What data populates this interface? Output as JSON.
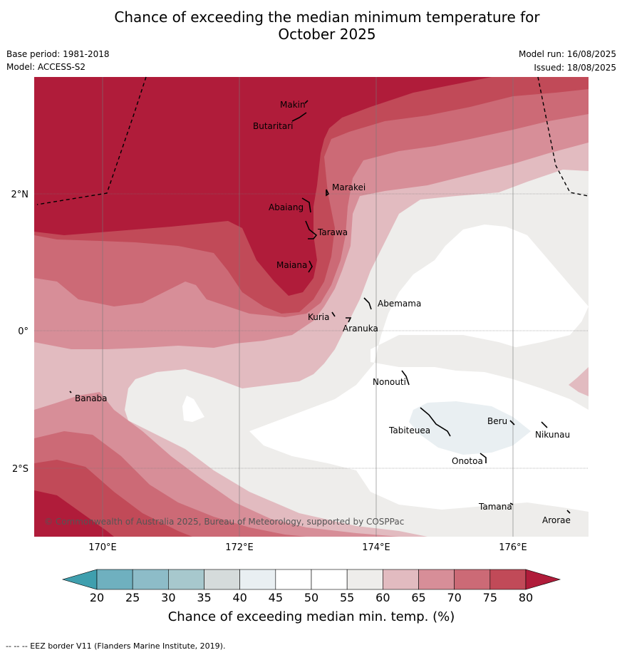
{
  "header": {
    "title_line1": "Chance of exceeding the median minimum temperature for",
    "title_line2": "October 2025",
    "base_period": "Base period: 1981-2018",
    "model": "Model: ACCESS-S2",
    "model_run": "Model run: 16/08/2025",
    "issued": "Issued: 18/08/2025"
  },
  "map": {
    "lat_labels": [
      "2°N",
      "0°",
      "2°S"
    ],
    "lon_labels": [
      "170°E",
      "172°E",
      "174°E",
      "176°E"
    ],
    "places": [
      "Makin",
      "Butaritari",
      "Marakei",
      "Abaiang",
      "Tarawa",
      "Maiana",
      "Abemama",
      "Kuria",
      "Aranuka",
      "Nonouti",
      "Banaba",
      "Beru",
      "Tabiteuea",
      "Nikunau",
      "Onotoa",
      "Tamana",
      "Arorae"
    ],
    "copyright": "© Commonwealth of Australia 2025, Bureau of Meteorology, supported by COSPPac"
  },
  "colorbar": {
    "ticks": [
      "20",
      "25",
      "30",
      "35",
      "40",
      "45",
      "50",
      "55",
      "60",
      "65",
      "70",
      "75",
      "80"
    ],
    "colors": [
      "#6fb0bf",
      "#8dbcc8",
      "#a7c8cd",
      "#d5dbdb",
      "#e9eff2",
      "#ffffff",
      "#ffffff",
      "#eeedeb",
      "#e2bbc0",
      "#d78e98",
      "#cc6a76",
      "#c14a58"
    ],
    "under_color": "#3f9fae",
    "over_color": "#b01c3a",
    "label": "Chance of exceeding median min. temp. (%)"
  },
  "footnote": "--  --  -- EEZ border V11 (Flanders Marine Institute, 2019)."
}
